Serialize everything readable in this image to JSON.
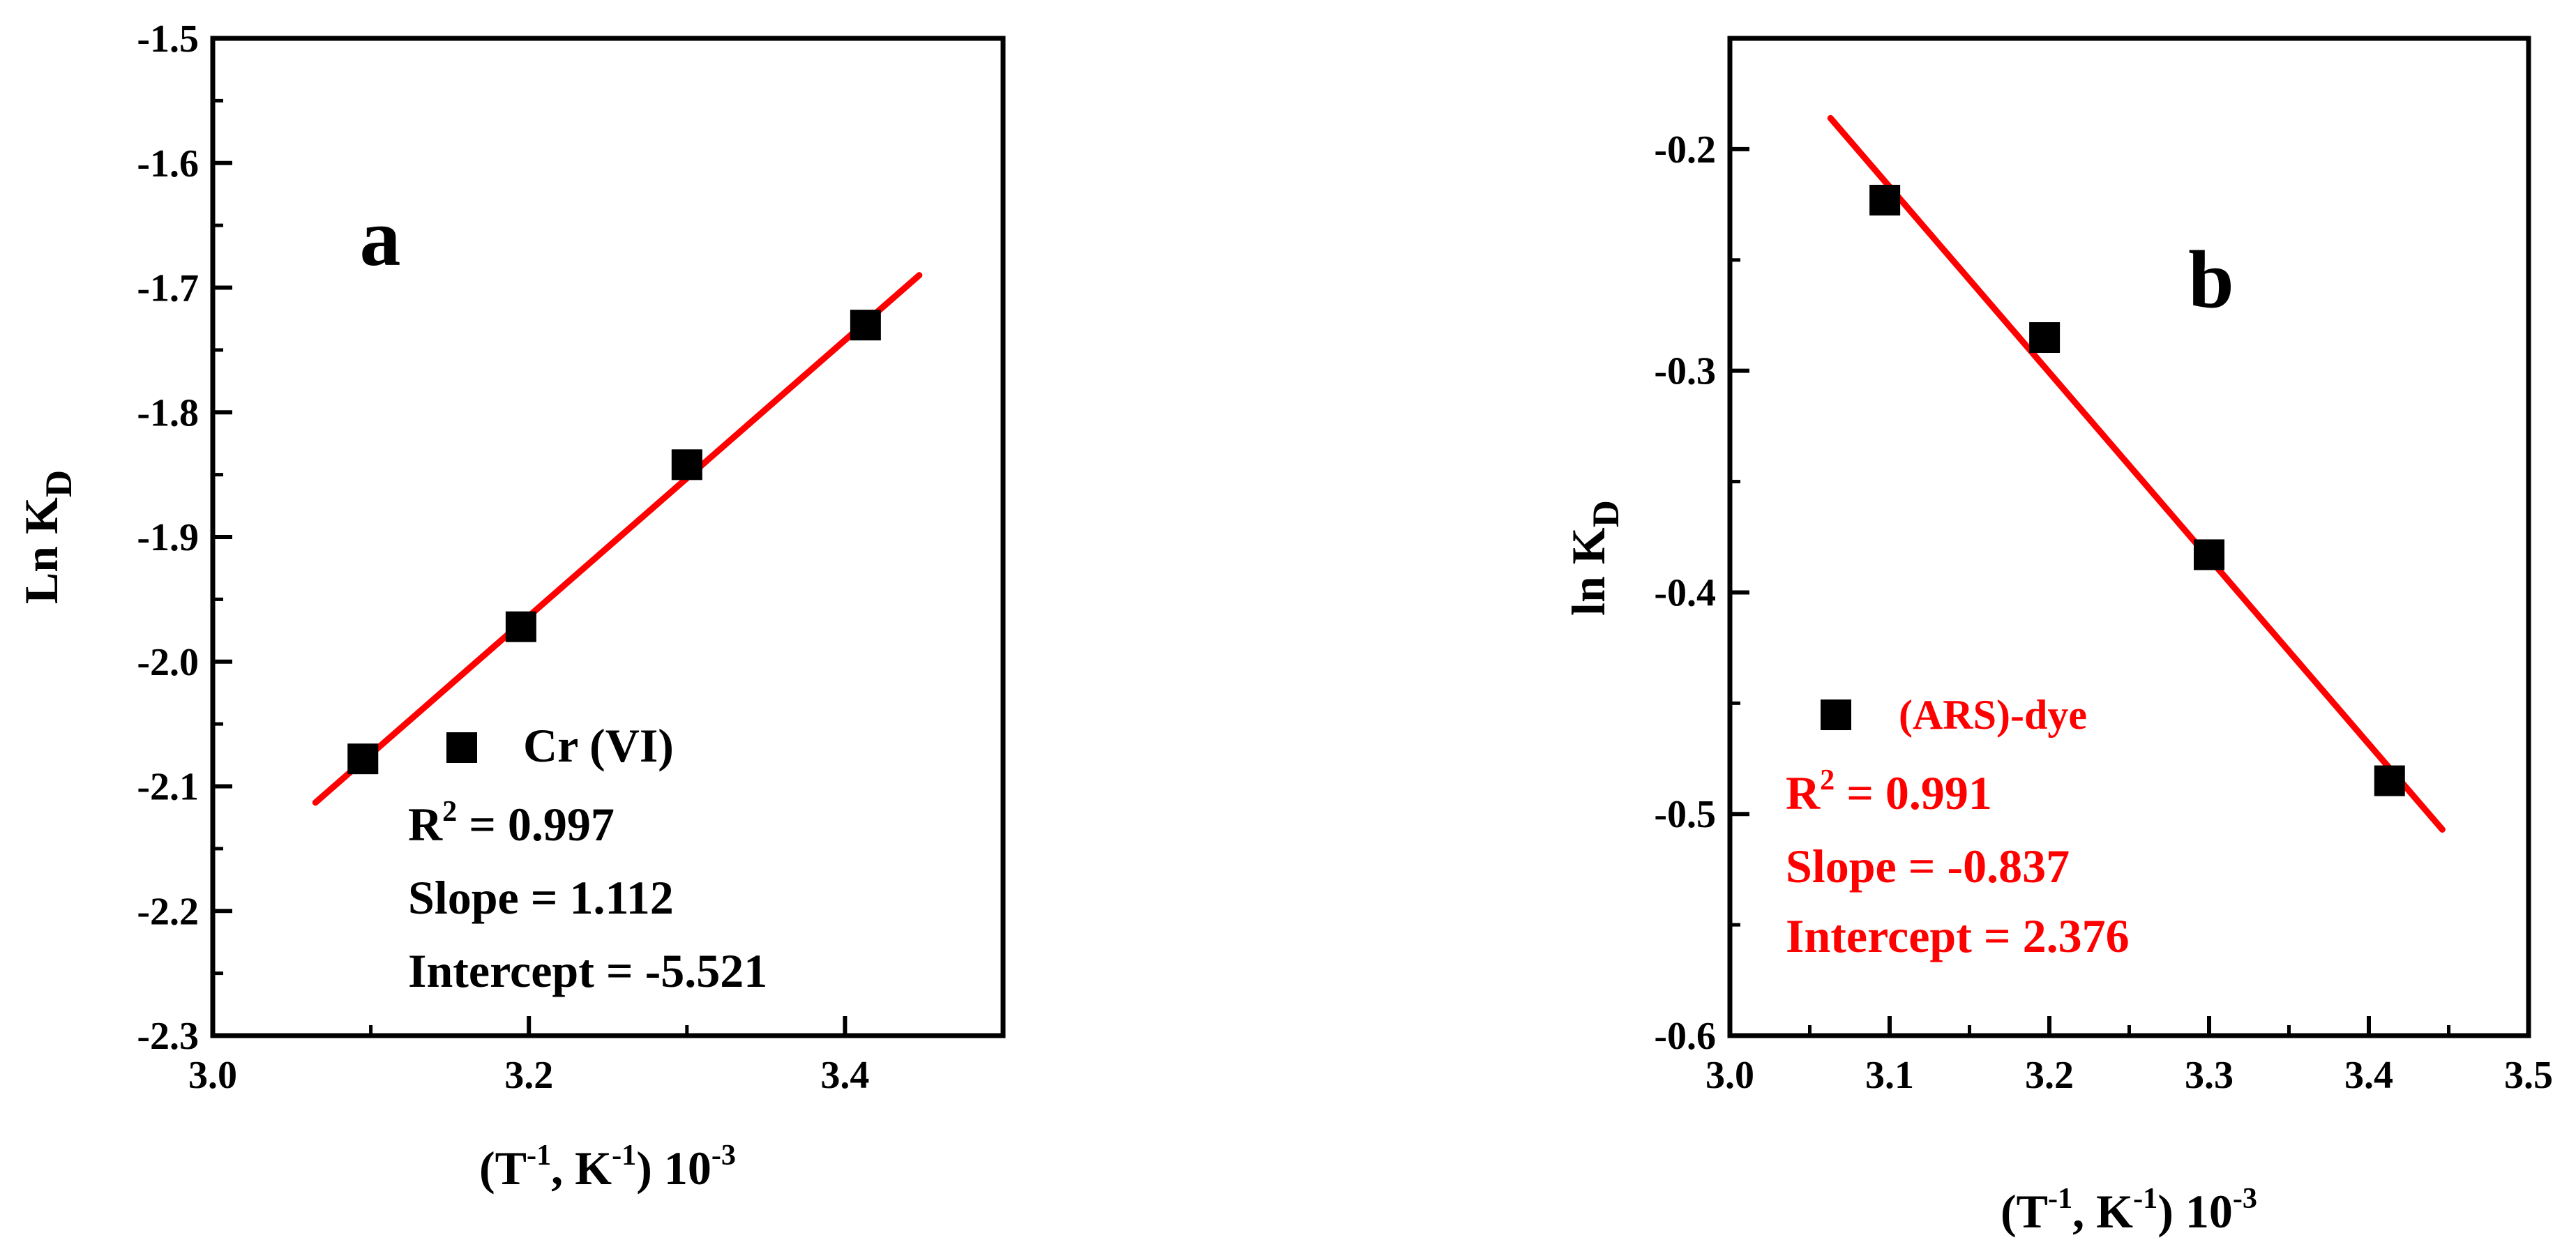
{
  "chart_data": [
    {
      "type": "scatter",
      "panel_label": "a",
      "xlabel": {
        "main": "(T",
        "sup1": "-1",
        "mid": ", K",
        "sup2": "-1",
        "end": ") 10",
        "sup3": "-3"
      },
      "ylabel": {
        "main": "Ln K",
        "sub": "D"
      },
      "xlim": [
        3.0,
        3.5
      ],
      "ylim": [
        -2.3,
        -1.5
      ],
      "xticks": [
        3.0,
        3.2,
        3.4
      ],
      "xtick_labels": [
        "3.0",
        "3.2",
        "3.4"
      ],
      "yticks": [
        -2.3,
        -2.2,
        -2.1,
        -2.0,
        -1.9,
        -1.8,
        -1.7,
        -1.6,
        -1.5
      ],
      "ytick_labels": [
        "-2.3",
        "-2.2",
        "-2.1",
        "-2.0",
        "-1.9",
        "-1.8",
        "-1.7",
        "-1.6",
        "-1.5"
      ],
      "grid": false,
      "series": [
        {
          "name": "Cr (VI)",
          "marker": "square",
          "color": "#000000",
          "x": [
            3.095,
            3.195,
            3.3,
            3.413
          ],
          "y": [
            -2.078,
            -1.972,
            -1.842,
            -1.73
          ]
        }
      ],
      "fit_line": {
        "color": "#ff0000",
        "x": [
          3.065,
          3.447
        ],
        "y": [
          -2.113,
          -1.69
        ]
      },
      "annotations": {
        "r2_prefix": "R",
        "r2_sup": "2",
        "r2_value": " = 0.997",
        "slope": "Slope = 1.112",
        "intercept": "Intercept = -5.521",
        "text_color": "#000000"
      }
    },
    {
      "type": "scatter",
      "panel_label": "b",
      "xlabel": {
        "main": "(T",
        "sup1": "-1",
        "mid": ", K",
        "sup2": "-1",
        "end": ") 10",
        "sup3": "-3"
      },
      "ylabel": {
        "main": "ln K",
        "sub": "D"
      },
      "xlim": [
        3.0,
        3.5
      ],
      "ylim": [
        -0.6,
        -0.15
      ],
      "xticks": [
        3.0,
        3.1,
        3.2,
        3.3,
        3.4,
        3.5
      ],
      "xtick_labels": [
        "3.0",
        "3.1",
        "3.2",
        "3.3",
        "3.4",
        "3.5"
      ],
      "yticks": [
        -0.6,
        -0.5,
        -0.4,
        -0.3,
        -0.2
      ],
      "ytick_labels": [
        "-0.6",
        "-0.5",
        "-0.4",
        "-0.3",
        "-0.2"
      ],
      "grid": false,
      "series": [
        {
          "name": "(ARS)-dye",
          "marker": "square",
          "color": "#000000",
          "x": [
            3.097,
            3.197,
            3.3,
            3.413
          ],
          "y": [
            -0.223,
            -0.285,
            -0.383,
            -0.485
          ]
        }
      ],
      "fit_line": {
        "color": "#ff0000",
        "x": [
          3.063,
          3.446
        ],
        "y": [
          -0.186,
          -0.507
        ]
      },
      "annotations": {
        "r2_prefix": "R",
        "r2_sup": "2",
        "r2_value": " = 0.991",
        "slope": "Slope = -0.837",
        "intercept": "Intercept = 2.376",
        "text_color": "#ff0000"
      }
    }
  ]
}
